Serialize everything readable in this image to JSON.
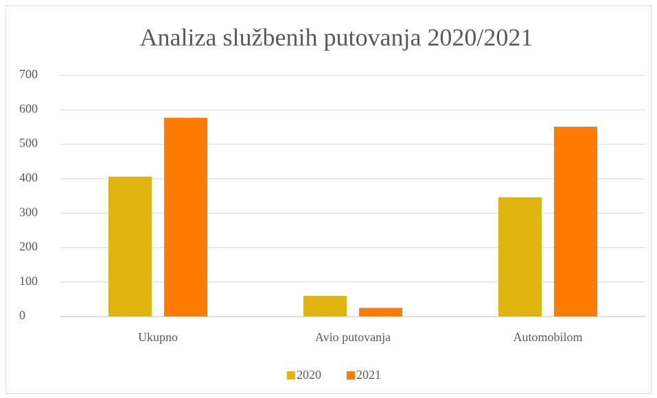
{
  "chart_data": {
    "type": "bar",
    "title": "Analiza službenih putovanja 2020/2021",
    "categories": [
      "Ukupno",
      "Avio putovanja",
      "Automobilom"
    ],
    "series": [
      {
        "name": "2020",
        "color": "#e0b50f",
        "values": [
          406,
          60,
          346
        ]
      },
      {
        "name": "2021",
        "color": "#ff7c00",
        "values": [
          577,
          25,
          551
        ]
      }
    ],
    "ylim": [
      0,
      700
    ],
    "yticks": [
      0,
      100,
      200,
      300,
      400,
      500,
      600,
      700
    ],
    "grid": true,
    "legend": "bottom"
  }
}
